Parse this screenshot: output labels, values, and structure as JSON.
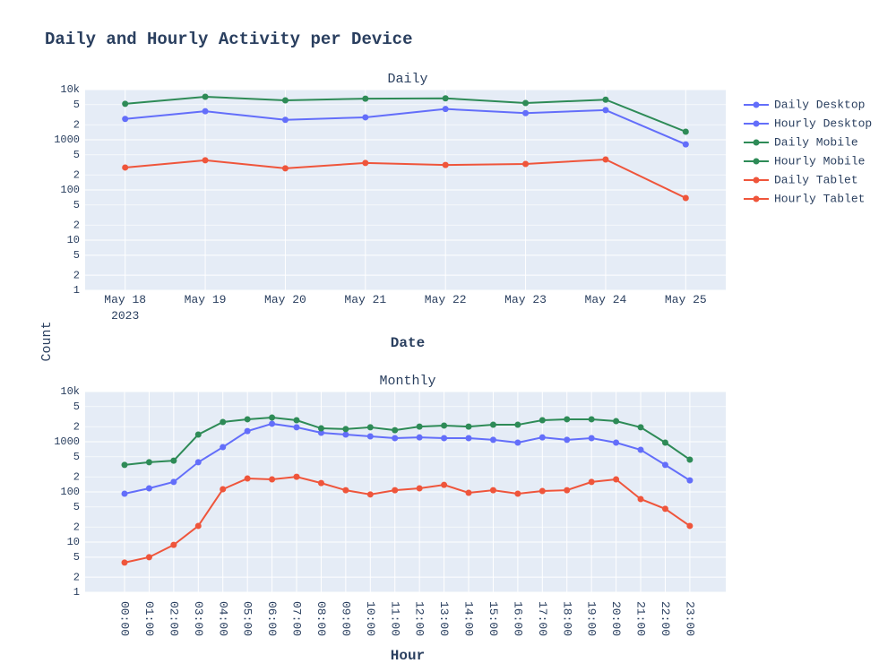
{
  "title": "Daily and Hourly Activity per Device",
  "chart_data": [
    {
      "type": "line",
      "title": "Daily",
      "xlabel": "Date",
      "ylabel": "Count",
      "log_y": true,
      "grid": true,
      "x": [
        "2023-05-18",
        "2023-05-19",
        "2023-05-20",
        "2023-05-21",
        "2023-05-22",
        "2023-05-23",
        "2023-05-24",
        "2023-05-25"
      ],
      "xlim": [
        "2023-05-17T12:00Z",
        "2023-05-25T12:00Z"
      ],
      "xticks": [
        {
          "value": "2023-05-18",
          "label": "May 18\n2023"
        },
        {
          "value": "2023-05-19",
          "label": "May 19"
        },
        {
          "value": "2023-05-20",
          "label": "May 20"
        },
        {
          "value": "2023-05-21",
          "label": "May 21"
        },
        {
          "value": "2023-05-22",
          "label": "May 22"
        },
        {
          "value": "2023-05-23",
          "label": "May 23"
        },
        {
          "value": "2023-05-24",
          "label": "May 24"
        },
        {
          "value": "2023-05-25",
          "label": "May 25"
        }
      ],
      "ylim": [
        1,
        10000
      ],
      "yticks": [
        1,
        2,
        5,
        10,
        {
          "value": 20,
          "label": "2"
        },
        {
          "value": 50,
          "label": "5"
        },
        100,
        {
          "value": 200,
          "label": "2"
        },
        {
          "value": 500,
          "label": "5"
        },
        1000,
        {
          "value": 2000,
          "label": "2"
        },
        {
          "value": 5000,
          "label": "5"
        },
        {
          "value": 10000,
          "label": "10k"
        }
      ],
      "series": [
        {
          "name": "Daily Desktop",
          "color": "#636efa",
          "values": [
            2600,
            3700,
            2500,
            2800,
            4100,
            3400,
            3900,
            810
          ]
        },
        {
          "name": "Daily Mobile",
          "color": "#2e8b57",
          "values": [
            5200,
            7200,
            6100,
            6600,
            6700,
            5400,
            6300,
            1450
          ]
        },
        {
          "name": "Daily Tablet",
          "color": "#ef553b",
          "values": [
            280,
            390,
            270,
            345,
            315,
            330,
            405,
            69
          ]
        }
      ]
    },
    {
      "type": "line",
      "title": "Monthly",
      "xlabel": "Hour",
      "log_y": true,
      "grid": true,
      "categories": [
        "00:00",
        "01:00",
        "02:00",
        "03:00",
        "04:00",
        "05:00",
        "06:00",
        "07:00",
        "08:00",
        "09:00",
        "10:00",
        "11:00",
        "12:00",
        "13:00",
        "14:00",
        "15:00",
        "16:00",
        "17:00",
        "18:00",
        "19:00",
        "20:00",
        "21:00",
        "22:00",
        "23:00"
      ],
      "ylim": [
        1,
        10000
      ],
      "yticks": [
        1,
        2,
        5,
        10,
        {
          "value": 20,
          "label": "2"
        },
        {
          "value": 50,
          "label": "5"
        },
        100,
        {
          "value": 200,
          "label": "2"
        },
        {
          "value": 500,
          "label": "5"
        },
        1000,
        {
          "value": 2000,
          "label": "2"
        },
        {
          "value": 5000,
          "label": "5"
        },
        {
          "value": 10000,
          "label": "10k"
        }
      ],
      "series": [
        {
          "name": "Hourly Desktop",
          "color": "#636efa",
          "values": [
            92,
            118,
            158,
            390,
            780,
            1630,
            2280,
            1940,
            1510,
            1390,
            1280,
            1180,
            1220,
            1180,
            1180,
            1090,
            960,
            1220,
            1090,
            1180,
            960,
            690,
            345,
            170
          ]
        },
        {
          "name": "Hourly Mobile",
          "color": "#2e8b57",
          "values": [
            345,
            390,
            420,
            1390,
            2470,
            2800,
            3030,
            2680,
            1850,
            1790,
            1940,
            1700,
            2000,
            2100,
            2000,
            2180,
            2180,
            2680,
            2800,
            2800,
            2570,
            1940,
            960,
            440
          ]
        },
        {
          "name": "Hourly Tablet",
          "color": "#ef553b",
          "values": [
            3.9,
            5,
            8.8,
            21,
            113,
            185,
            178,
            200,
            150,
            108,
            89,
            108,
            118,
            138,
            96,
            108,
            92,
            104,
            108,
            158,
            178,
            72,
            46,
            21
          ]
        }
      ]
    }
  ]
}
